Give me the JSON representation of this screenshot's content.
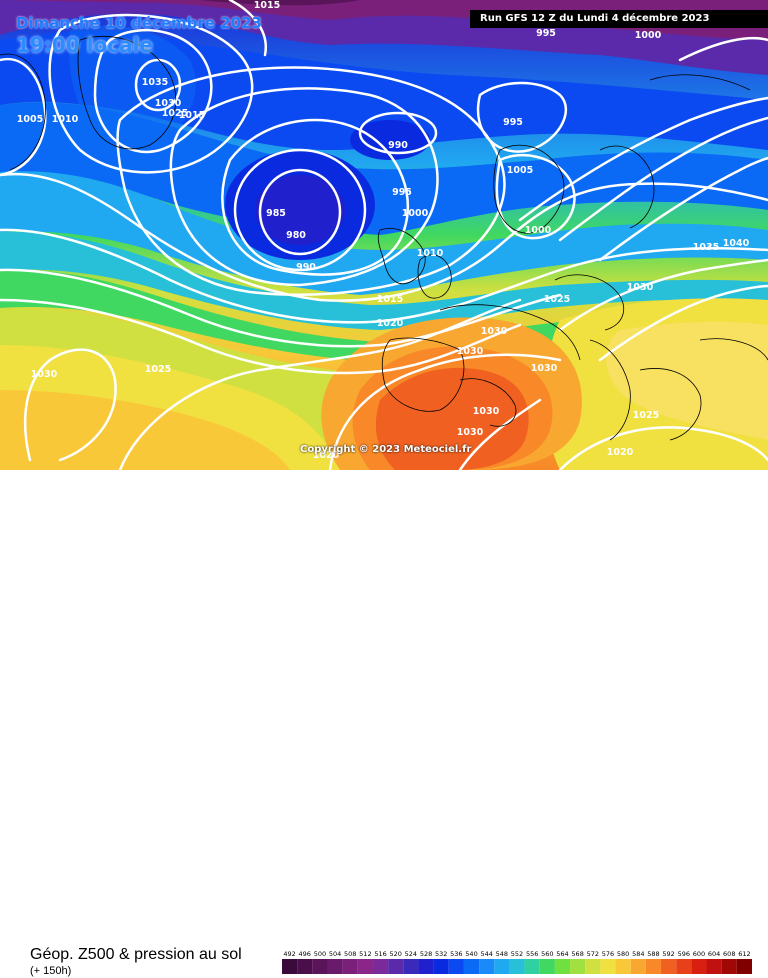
{
  "header": {
    "date": "Dimanche 10 décembre 2023",
    "time": "19:00 locale",
    "run": "Run GFS 12 Z du Lundi 4 décembre 2023"
  },
  "copyright": "Copyright © 2023 Meteociel.fr",
  "legend": {
    "title": "Géop. Z500 & pression au sol",
    "subtitle": "(+ 150h)",
    "values": [
      "492",
      "496",
      "500",
      "504",
      "508",
      "512",
      "516",
      "520",
      "524",
      "528",
      "532",
      "536",
      "540",
      "544",
      "548",
      "552",
      "556",
      "560",
      "564",
      "568",
      "572",
      "576",
      "580",
      "584",
      "588",
      "592",
      "596",
      "600",
      "604",
      "608",
      "612"
    ],
    "colors": [
      "#3a0a3a",
      "#4a0f4a",
      "#5a145a",
      "#6a1a6a",
      "#7a207a",
      "#8a268a",
      "#7a2a9a",
      "#5a2aaa",
      "#3a2aba",
      "#2020cc",
      "#0a2ae0",
      "#0a4af0",
      "#0a6af6",
      "#1a8af8",
      "#20a8f0",
      "#28c0d8",
      "#30d0a0",
      "#40d860",
      "#70e040",
      "#a0e040",
      "#d0e040",
      "#f0e040",
      "#f8c838",
      "#f8a830",
      "#f88828",
      "#f06020",
      "#e84018",
      "#d82010",
      "#c01010",
      "#a00808",
      "#800000"
    ]
  },
  "isobar_labels": [
    {
      "text": "1015"
    },
    {
      "text": "995"
    },
    {
      "text": "1000"
    },
    {
      "text": "1035"
    },
    {
      "text": "1030"
    },
    {
      "text": "1025"
    },
    {
      "text": "1015"
    },
    {
      "text": "1005"
    },
    {
      "text": "1010"
    },
    {
      "text": "995"
    },
    {
      "text": "990"
    },
    {
      "text": "1005"
    },
    {
      "text": "995"
    },
    {
      "text": "985"
    },
    {
      "text": "1000"
    },
    {
      "text": "980"
    },
    {
      "text": "1000"
    },
    {
      "text": "990"
    },
    {
      "text": "1010"
    },
    {
      "text": "1035"
    },
    {
      "text": "1040"
    },
    {
      "text": "1015"
    },
    {
      "text": "1025"
    },
    {
      "text": "1030"
    },
    {
      "text": "1020"
    },
    {
      "text": "1030"
    },
    {
      "text": "1030"
    },
    {
      "text": "1030"
    },
    {
      "text": "1030"
    },
    {
      "text": "1025"
    },
    {
      "text": "1030"
    },
    {
      "text": "1030"
    },
    {
      "text": "1025"
    },
    {
      "text": "1020"
    },
    {
      "text": "1020"
    }
  ]
}
